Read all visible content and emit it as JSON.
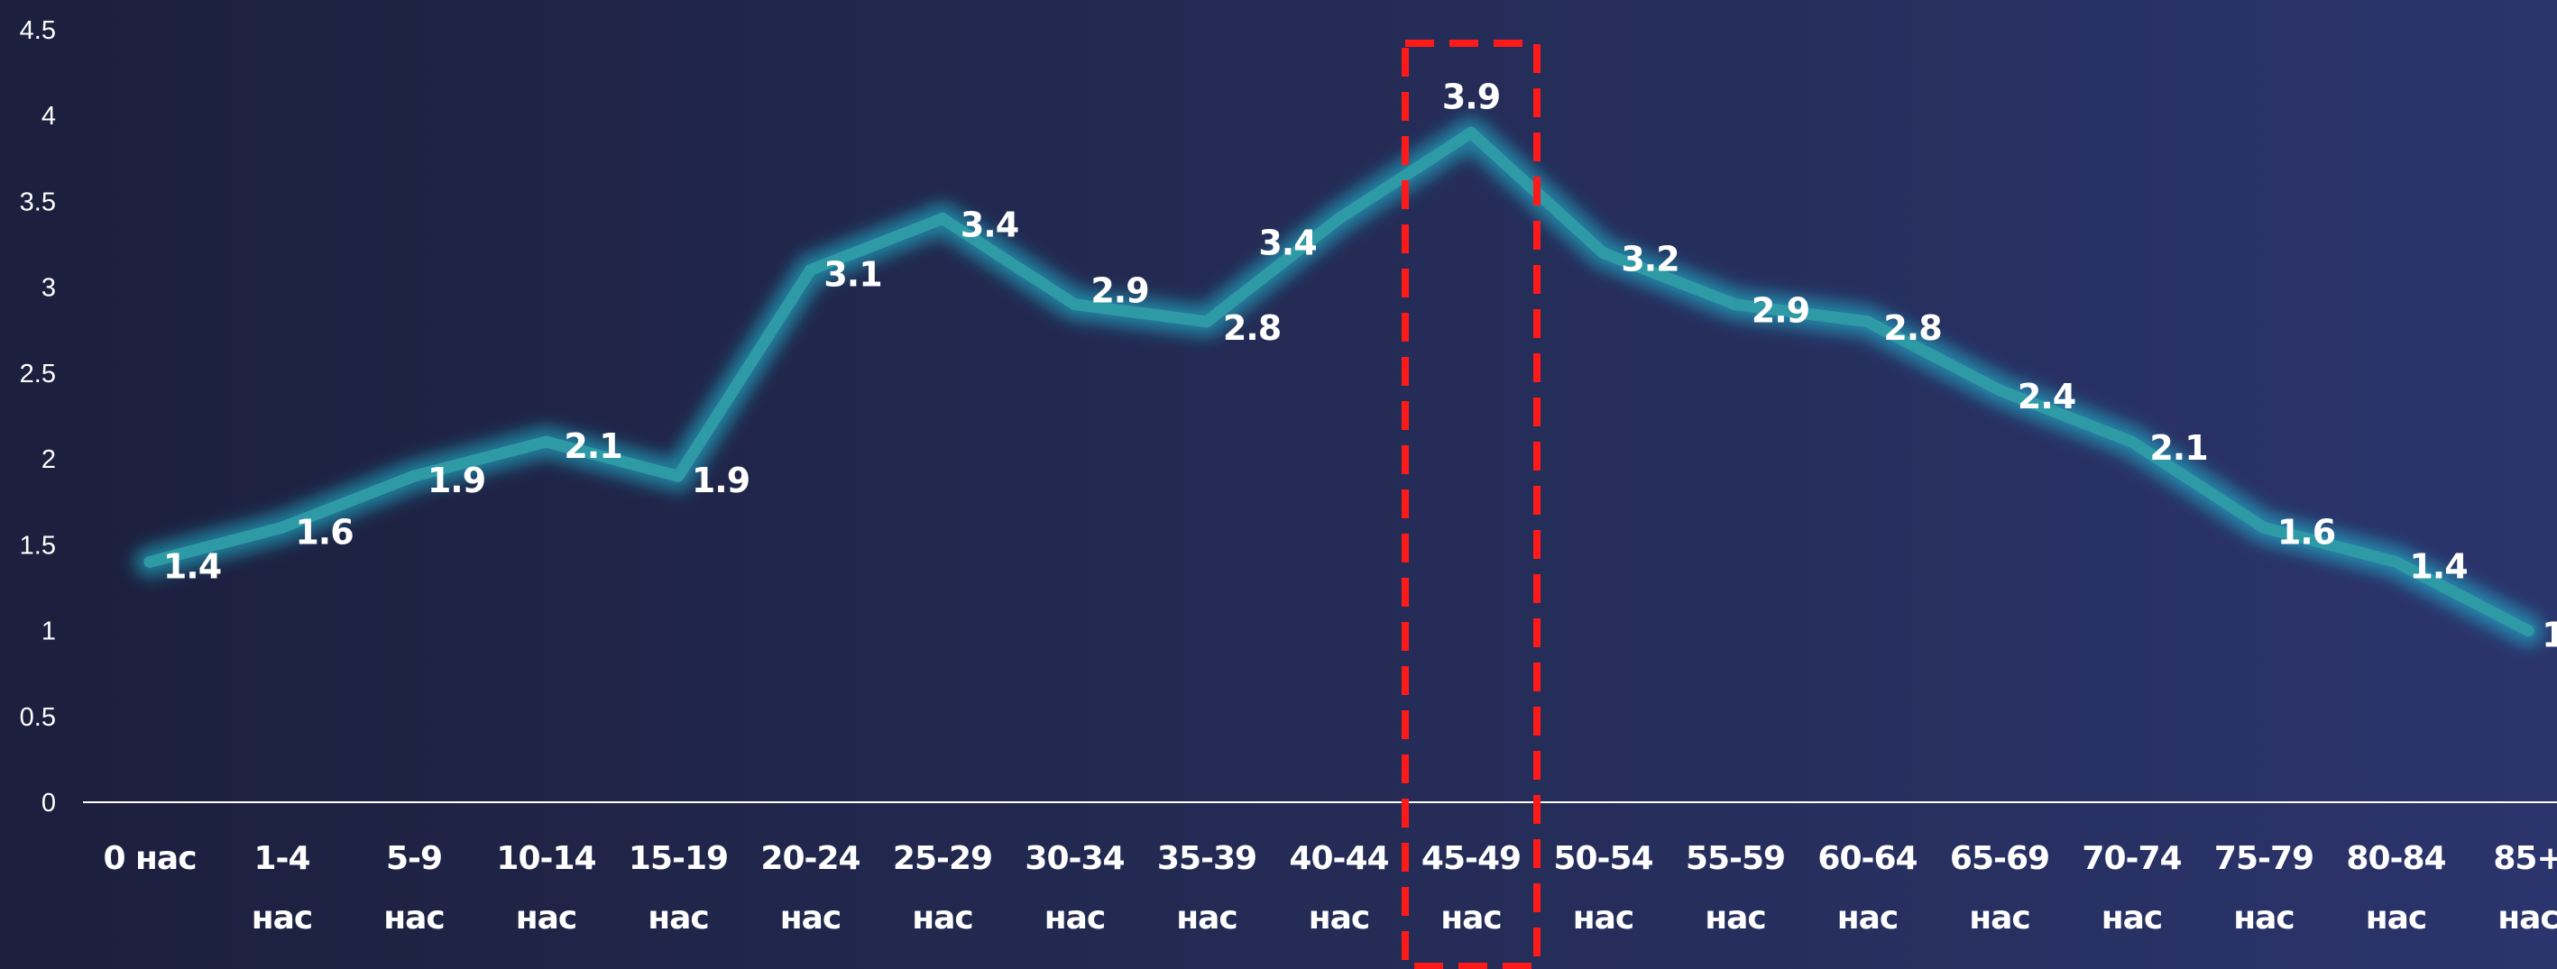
{
  "chart_data": {
    "type": "line",
    "categories": [
      "0 нас",
      "1-4 нас",
      "5-9 нас",
      "10-14 нас",
      "15-19 нас",
      "20-24 нас",
      "25-29 нас",
      "30-34 нас",
      "35-39 нас",
      "40-44 нас",
      "45-49 нас",
      "50-54 нас",
      "55-59 нас",
      "60-64 нас",
      "65-69 нас",
      "70-74 нас",
      "75-79 нас",
      "80-84 нас",
      "85+ нас"
    ],
    "series": [
      {
        "values": [
          1.4,
          1.6,
          1.9,
          2.1,
          1.9,
          3.1,
          3.4,
          2.9,
          2.8,
          3.4,
          3.9,
          3.2,
          2.9,
          2.8,
          2.4,
          2.1,
          1.6,
          1.4,
          1
        ]
      }
    ],
    "data_labels": [
      "1.4",
      "1.6",
      "1.9",
      "2.1",
      "1.9",
      "3.1",
      "3.4",
      "2.9",
      "2.8",
      "3.4",
      "3.9",
      "3.2",
      "2.9",
      "2.8",
      "2.4",
      "2.1",
      "1.6",
      "1.4",
      "1"
    ],
    "yticks": [
      "0",
      "0.5",
      "1",
      "1.5",
      "2",
      "2.5",
      "3",
      "3.5",
      "4",
      "4.5"
    ],
    "ylim": [
      0,
      4.5
    ],
    "grid": false,
    "legend": "none",
    "highlight_category": "45-49 нас",
    "colors": {
      "line": "#2e9aa6",
      "glow": "#1fc9e0",
      "highlight": "#ff1a1a",
      "text": "#ffffff",
      "axis": "#ffffff"
    }
  }
}
